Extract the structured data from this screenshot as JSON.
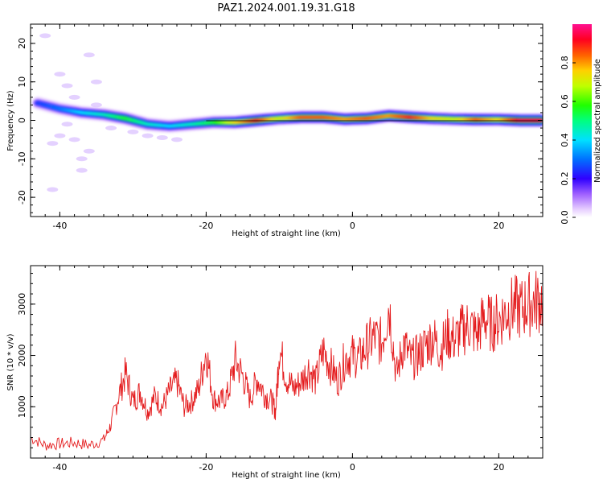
{
  "figure": {
    "title": "PAZ1.2024.001.19.31.G18"
  },
  "chart_data": [
    {
      "type": "heatmap",
      "xlabel": "Height of straight line (km)",
      "ylabel": "Frequency (Hz)",
      "xlim": [
        -44,
        26
      ],
      "ylim": [
        -25,
        25
      ],
      "xticks": [
        -40,
        -20,
        0,
        20
      ],
      "yticks": [
        -20,
        -10,
        0,
        10,
        20
      ],
      "colorbar": {
        "label": "Normalized spectral amplitude",
        "range": [
          0,
          1
        ],
        "ticks": [
          "0.0",
          "0.2",
          "0.4",
          "0.6",
          "0.8"
        ],
        "colormap": "rainbow"
      },
      "ridge": {
        "height_km": [
          -43,
          -40,
          -37,
          -34,
          -31,
          -28,
          -25,
          -22,
          -19,
          -16,
          -13,
          -10,
          -7,
          -4,
          -1,
          2,
          5,
          8,
          11,
          14,
          17,
          20,
          23,
          26
        ],
        "frequency_hz": [
          4.5,
          3.0,
          2.0,
          1.5,
          0.5,
          -1.0,
          -1.5,
          -1.0,
          -0.5,
          -0.5,
          0.0,
          0.5,
          0.8,
          0.8,
          0.3,
          0.5,
          1.2,
          0.8,
          0.5,
          0.3,
          0.2,
          0.2,
          0.0,
          0.0
        ],
        "amplitude": [
          0.25,
          0.3,
          0.4,
          0.45,
          0.55,
          0.45,
          0.4,
          0.45,
          0.55,
          0.75,
          0.9,
          0.7,
          0.85,
          0.85,
          0.8,
          0.85,
          0.8,
          0.9,
          0.75,
          0.7,
          0.85,
          0.75,
          0.95,
          0.95
        ]
      },
      "scatter_low_amplitude": {
        "height_km": [
          -42,
          -41,
          -38,
          -37,
          -36,
          -35,
          -39,
          -40,
          -38,
          -36,
          -33,
          -30,
          -28,
          -26,
          -24,
          -40,
          -39,
          -37,
          -41,
          -35
        ],
        "frequency_hz": [
          22,
          -6,
          -5,
          -10,
          17,
          10,
          -1,
          -4,
          6,
          -8,
          -2,
          -3,
          -4,
          -4.5,
          -5,
          12,
          9,
          -13,
          -18,
          4
        ]
      }
    },
    {
      "type": "line",
      "xlabel": "Height of straight line (km)",
      "ylabel": "SNR (10 * v/v)",
      "xlim": [
        -44,
        26
      ],
      "ylim": [
        0,
        3750
      ],
      "xticks": [
        -40,
        -20,
        0,
        20
      ],
      "yticks": [
        1000,
        2000,
        3000
      ],
      "series": [
        {
          "color": "#e41a1c",
          "x": [
            -44,
            -42,
            -40,
            -38,
            -36,
            -34,
            -33,
            -32,
            -31,
            -30,
            -29,
            -28,
            -27,
            -26,
            -25,
            -24,
            -23,
            -22,
            -21,
            -20,
            -19,
            -18,
            -17,
            -16,
            -15,
            -14,
            -13,
            -12,
            -11,
            -10.5,
            -10,
            -9,
            -8,
            -7,
            -6,
            -5,
            -4,
            -3,
            -2,
            -1,
            0,
            1,
            2,
            3,
            4,
            5,
            6,
            7,
            8,
            9,
            10,
            11,
            12,
            13,
            14,
            15,
            16,
            17,
            18,
            19,
            20,
            21,
            22,
            23,
            24,
            25,
            26
          ],
          "y": [
            400,
            250,
            280,
            300,
            250,
            350,
            650,
            1200,
            1650,
            1100,
            1300,
            900,
            1200,
            1000,
            1300,
            1500,
            1000,
            1100,
            1350,
            2100,
            1150,
            1100,
            1250,
            1900,
            1600,
            1150,
            1550,
            1250,
            1100,
            900,
            2150,
            1550,
            1350,
            1500,
            1750,
            1500,
            2100,
            1800,
            1500,
            1950,
            2000,
            1950,
            2200,
            2350,
            2250,
            3000,
            1600,
            2250,
            1900,
            2000,
            2200,
            2350,
            2100,
            2400,
            2300,
            2500,
            2600,
            2400,
            2750,
            2600,
            2700,
            2850,
            2950,
            2900,
            3000,
            3050,
            3100
          ]
        }
      ]
    }
  ]
}
